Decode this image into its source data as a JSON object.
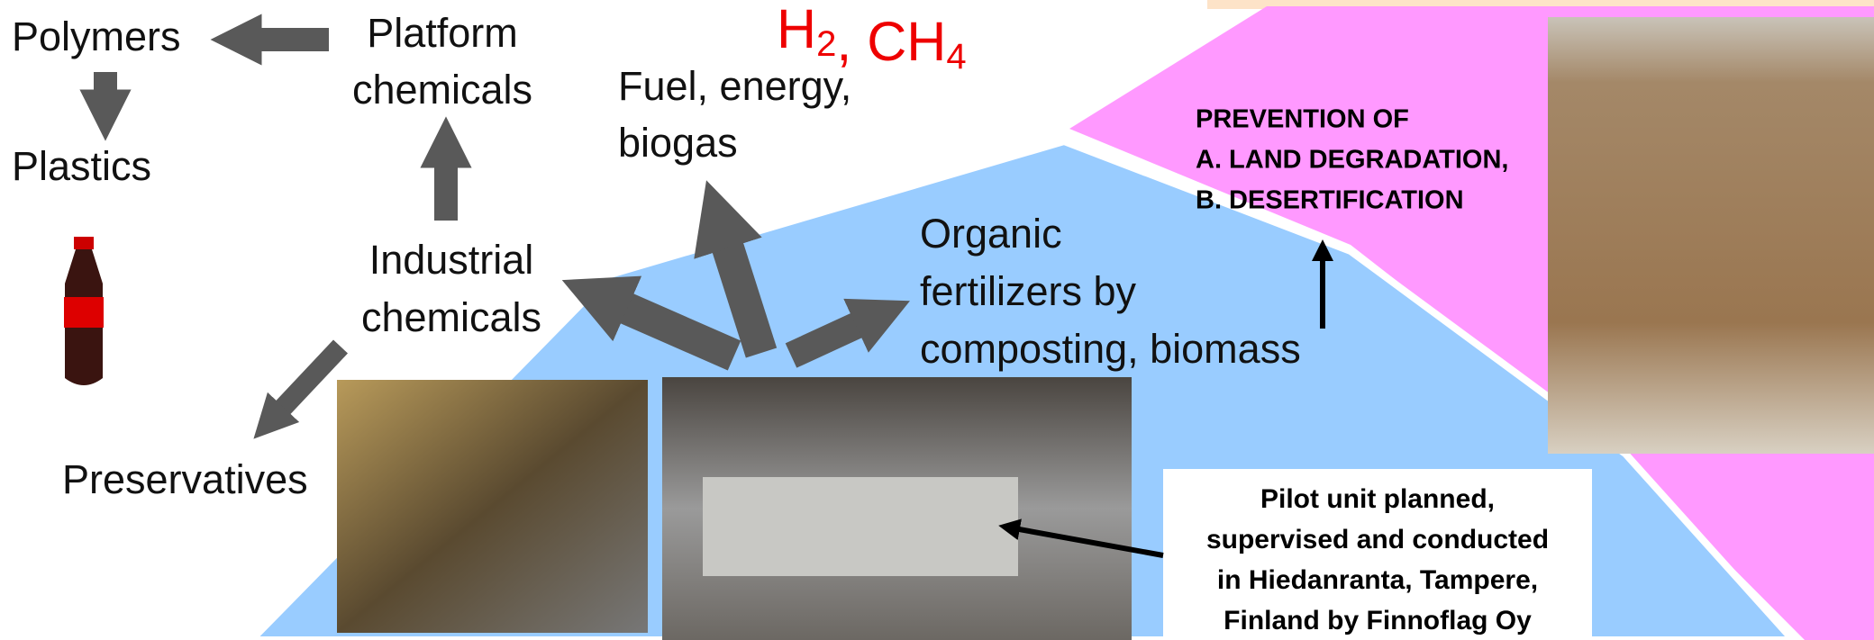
{
  "labels": {
    "polymers": "Polymers",
    "plastics": "Plastics",
    "platform_chemicals": [
      "Platform",
      "chemicals"
    ],
    "industrial_chemicals": [
      "Industrial",
      "chemicals"
    ],
    "preservatives": "Preservatives",
    "fuel": [
      "Fuel, energy,",
      "biogas"
    ],
    "gases": {
      "items": [
        {
          "symbol": "H",
          "sub": "2"
        },
        {
          "symbol": "CH",
          "sub": "4"
        }
      ],
      "separator": ", "
    },
    "fertilizers": [
      "Organic",
      "fertilizers by",
      "composting, biomass"
    ],
    "prevention": [
      "PREVENTION OF",
      "A. LAND DEGRADATION,",
      "B. DESERTIFICATION"
    ],
    "pilot": [
      "Pilot unit planned,",
      "supervised and conducted",
      "in Hiedanranta, Tampere,",
      "Finland by Finnoflag Oy"
    ]
  }
}
